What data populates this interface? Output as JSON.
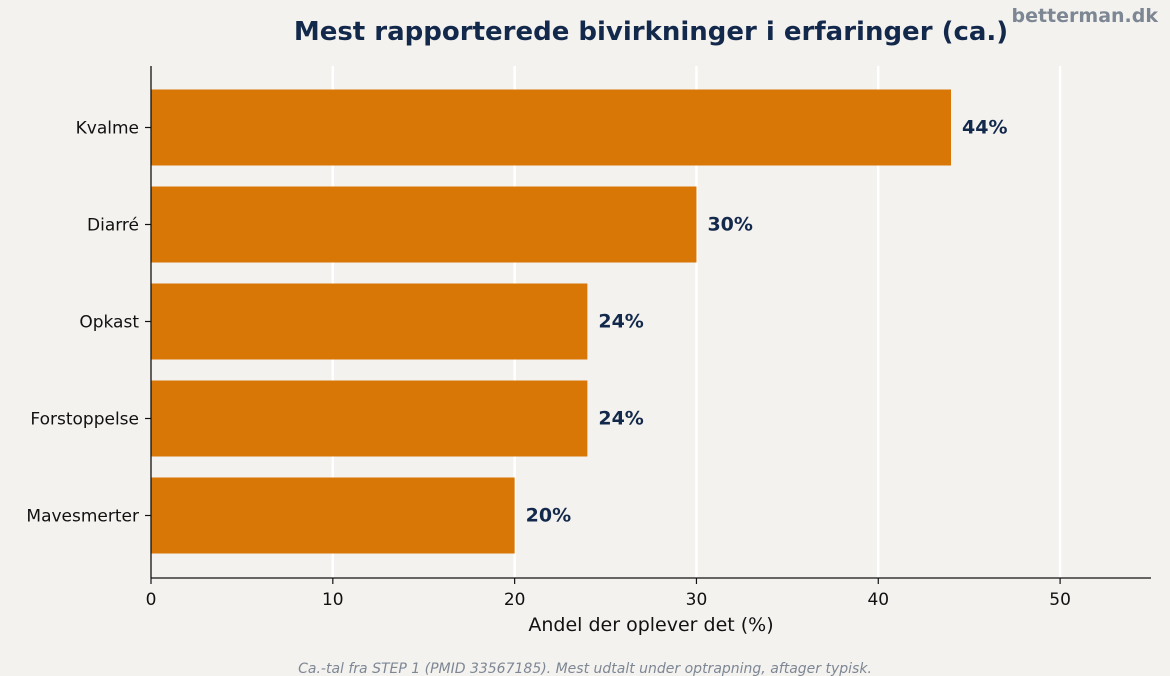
{
  "brand": "betterman.dk",
  "footnote": "Ca.-tal fra STEP 1 (PMID 33567185). Mest udtalt under optrapning, aftager typisk.",
  "colors": {
    "bar": "#d97706",
    "title": "#13294b",
    "background": "#f4f2ef",
    "grid": "#ffffff"
  },
  "chart_data": {
    "type": "bar",
    "orientation": "horizontal",
    "title": "Mest rapporterede bivirkninger i erfaringer (ca.)",
    "xlabel": "Andel der oplever det (%)",
    "ylabel": "",
    "categories": [
      "Kvalme",
      "Diarré",
      "Opkast",
      "Forstoppelse",
      "Mavesmerter"
    ],
    "values": [
      44,
      30,
      24,
      24,
      20
    ],
    "value_labels": [
      "44%",
      "30%",
      "24%",
      "24%",
      "20%"
    ],
    "xlim": [
      0,
      55
    ],
    "xticks": [
      0,
      10,
      20,
      30,
      40,
      50
    ],
    "xtick_labels": [
      "0",
      "10",
      "20",
      "30",
      "40",
      "50"
    ],
    "grid": "vertical",
    "legend": "none"
  }
}
